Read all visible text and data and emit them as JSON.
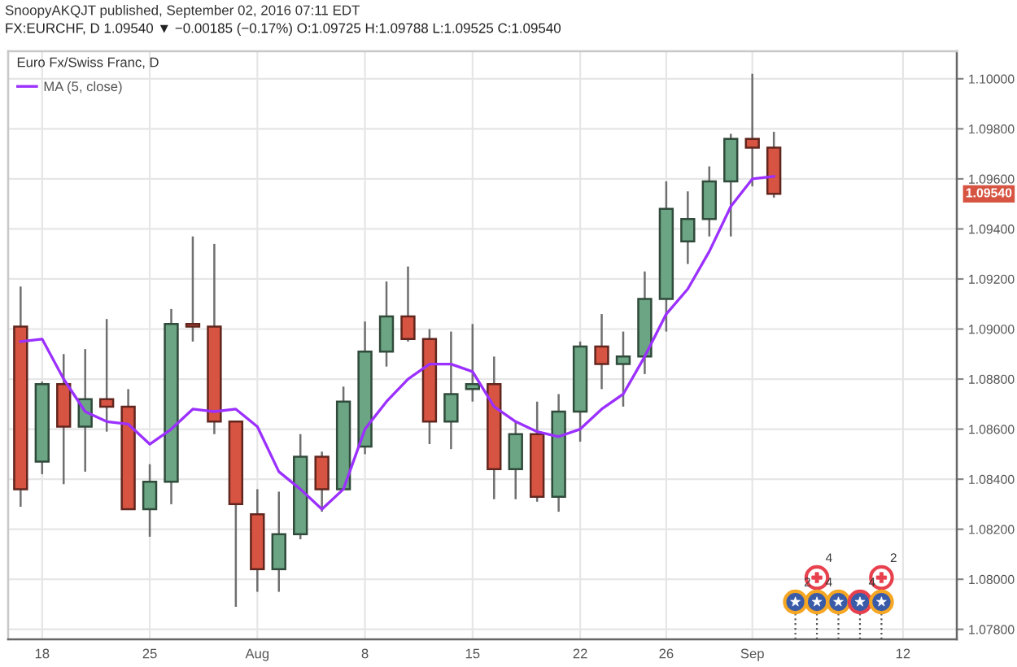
{
  "chart_data": {
    "type": "candlestick",
    "title": "FX:EURCHF, D 1.09540 ▼ −0.00185 (−0.17%) O:1.09725 H:1.09788 L:1.09525 C:1.09540",
    "subtitle": "Euro Fx/Swiss Franc, D",
    "annotations": [
      "SnoopyAKQJT published, September 02, 2016 07:11 EDT",
      "4",
      "2",
      "2",
      "4",
      "4",
      "1.09540"
    ],
    "categories": [
      null,
      "18",
      null,
      null,
      null,
      null,
      "25",
      null,
      null,
      null,
      null,
      "Aug",
      null,
      null,
      null,
      null,
      "8",
      null,
      null,
      null,
      null,
      "15",
      null,
      null,
      null,
      null,
      "22",
      null,
      null,
      null,
      "26",
      null,
      null,
      null,
      "Sep",
      null,
      null,
      null,
      null,
      null,
      null,
      "12",
      null,
      null
    ],
    "ohlc": [
      [
        1.0901,
        1.0917,
        1.0829,
        1.0836
      ],
      [
        1.0847,
        1.0879,
        1.0842,
        1.0878
      ],
      [
        1.0878,
        1.089,
        1.0838,
        1.0861
      ],
      [
        1.0861,
        1.0892,
        1.0843,
        1.0872
      ],
      [
        1.0872,
        1.0904,
        1.0859,
        1.0869
      ],
      [
        1.0869,
        1.0876,
        1.0828,
        1.0828
      ],
      [
        1.0828,
        1.0846,
        1.0817,
        1.0839
      ],
      [
        1.0839,
        1.0908,
        1.083,
        1.0902
      ],
      [
        1.0902,
        1.0937,
        1.0895,
        1.0901
      ],
      [
        1.0901,
        1.0934,
        1.0858,
        1.0863
      ],
      [
        1.0863,
        1.0863,
        1.0789,
        1.083
      ],
      [
        1.0826,
        1.0836,
        1.0795,
        1.0804
      ],
      [
        1.0804,
        1.0835,
        1.0795,
        1.0818
      ],
      [
        1.0818,
        1.0858,
        1.0816,
        1.0849
      ],
      [
        1.0849,
        1.0851,
        1.0827,
        1.0836
      ],
      [
        1.0836,
        1.0877,
        1.0836,
        1.0871
      ],
      [
        1.0853,
        1.0903,
        1.085,
        1.0891
      ],
      [
        1.0891,
        1.0919,
        1.0885,
        1.0905
      ],
      [
        1.0905,
        1.0925,
        1.0895,
        1.0896
      ],
      [
        1.0896,
        1.09,
        1.0854,
        1.0863
      ],
      [
        1.0863,
        1.0899,
        1.0852,
        1.0874
      ],
      [
        1.0876,
        1.0902,
        1.0871,
        1.0878
      ],
      [
        1.0878,
        1.0889,
        1.0832,
        1.0844
      ],
      [
        1.0844,
        1.0863,
        1.0832,
        1.0858
      ],
      [
        1.0858,
        1.0871,
        1.0831,
        1.0833
      ],
      [
        1.0833,
        1.0874,
        1.0827,
        1.0867
      ],
      [
        1.0867,
        1.0895,
        1.0855,
        1.0893
      ],
      [
        1.0893,
        1.0906,
        1.0876,
        1.0886
      ],
      [
        1.0886,
        1.0899,
        1.0869,
        1.0889
      ],
      [
        1.0889,
        1.0923,
        1.0882,
        1.0912
      ],
      [
        1.0912,
        1.0959,
        1.0899,
        1.0948
      ],
      [
        1.0935,
        1.0955,
        1.0926,
        1.0944
      ],
      [
        1.0944,
        1.0965,
        1.0937,
        1.0959
      ],
      [
        1.0959,
        1.0978,
        1.0937,
        1.0976
      ],
      [
        1.0976,
        1.1002,
        1.0957,
        1.09725
      ],
      [
        1.09725,
        1.09788,
        1.09525,
        1.0954
      ],
      null,
      null,
      null,
      null,
      null,
      null,
      null,
      null
    ],
    "colors": [
      "#d75442",
      "#6ba583",
      "#d75442",
      "#6ba583",
      "#d75442",
      "#d75442",
      "#6ba583",
      "#6ba583",
      "#d75442",
      "#d75442",
      "#d75442",
      "#d75442",
      "#6ba583",
      "#6ba583",
      "#d75442",
      "#6ba583",
      "#6ba583",
      "#6ba583",
      "#d75442",
      "#d75442",
      "#6ba583",
      "#6ba583",
      "#d75442",
      "#6ba583",
      "#d75442",
      "#6ba583",
      "#6ba583",
      "#d75442",
      "#6ba583",
      "#6ba583",
      "#6ba583",
      "#6ba583",
      "#6ba583",
      "#6ba583",
      "#d75442",
      "#d75442",
      null,
      null,
      null,
      null,
      null,
      null,
      null,
      null
    ],
    "series": [
      {
        "name": "MA (5, close)",
        "type": "line",
        "color": "#9b30ff",
        "values": [
          1.0895,
          1.0896,
          1.088,
          1.0867,
          1.0863,
          1.0862,
          1.0854,
          1.086,
          1.0868,
          1.0867,
          1.0868,
          1.0861,
          1.0843,
          1.0836,
          1.0828,
          1.0836,
          1.086,
          1.0871,
          1.088,
          1.0886,
          1.0886,
          1.0883,
          1.0869,
          1.0863,
          1.0859,
          1.0857,
          1.086,
          1.0868,
          1.0874,
          1.0889,
          1.0906,
          1.0916,
          1.0931,
          1.0949,
          1.096,
          1.0961,
          null,
          null,
          null,
          null,
          null,
          null,
          null,
          null
        ]
      }
    ],
    "ylim": [
      1.0776,
      1.1011
    ],
    "yticks": [
      {
        "value": 1.078,
        "label": "1.07800"
      },
      {
        "value": 1.08,
        "label": "1.08000"
      },
      {
        "value": 1.082,
        "label": "1.08200"
      },
      {
        "value": 1.084,
        "label": "1.08400"
      },
      {
        "value": 1.086,
        "label": "1.08600"
      },
      {
        "value": 1.088,
        "label": "1.08800"
      },
      {
        "value": 1.09,
        "label": "1.09000"
      },
      {
        "value": 1.092,
        "label": "1.09200"
      },
      {
        "value": 1.094,
        "label": "1.09400"
      },
      {
        "value": 1.096,
        "label": "1.09600"
      },
      {
        "value": 1.098,
        "label": "1.09800"
      },
      {
        "value": 1.1,
        "label": "1.10000"
      }
    ],
    "grid": true,
    "legend": "top left"
  }
}
